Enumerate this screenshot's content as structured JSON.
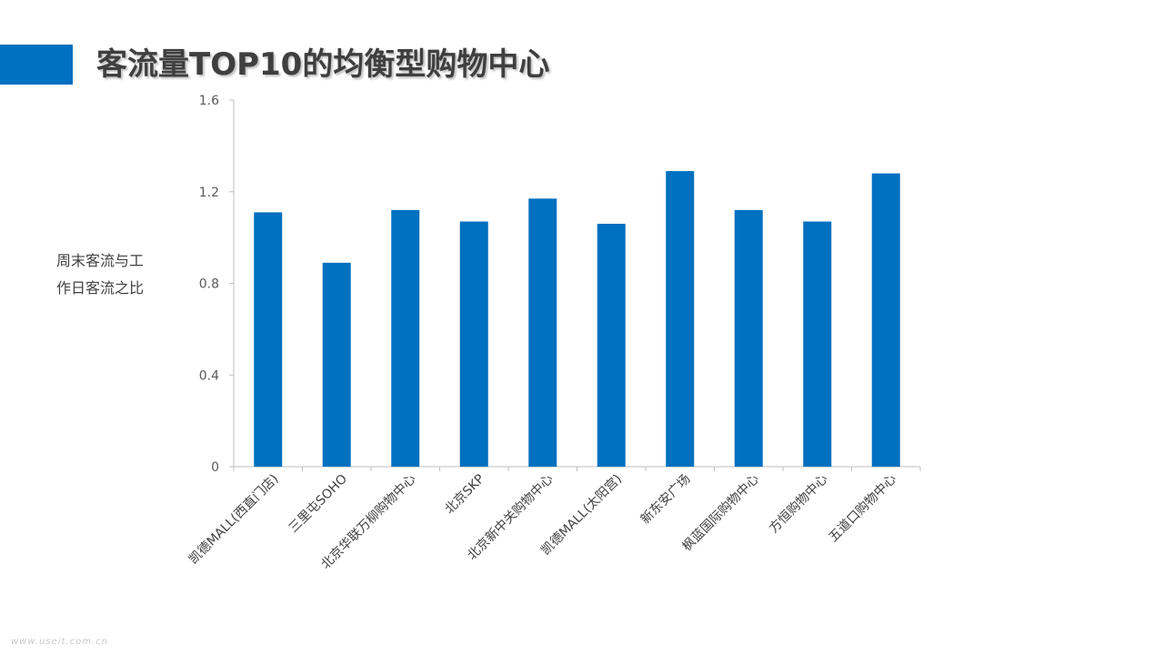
{
  "header": {
    "title": "客流量TOP10的均衡型购物中心",
    "accent_color": "#0070c0"
  },
  "watermark": "www.useit.com.cn",
  "chart_data": {
    "type": "bar",
    "title": "客流量TOP10的均衡型购物中心",
    "ylabel_lines": [
      "周末客流与工",
      "作日客流之比"
    ],
    "xlabel": "",
    "ylim": [
      0,
      1.6
    ],
    "yticks": [
      0,
      0.4,
      0.8,
      1.2,
      1.6
    ],
    "ytick_labels": [
      "0",
      "0.4",
      "0.8",
      "1.2",
      "1.6"
    ],
    "grid": false,
    "legend": "none",
    "bar_color": "#0070c0",
    "categories": [
      "凯德MALL(西直门店)",
      "三里屯SOHO",
      "北京华联万柳购物中心",
      "北京SKP",
      "北京新中关购物中心",
      "凯德MALL(太阳宫)",
      "新东安广场",
      "枫蓝国际购物中心",
      "方恒购物中心",
      "五道口购物中心"
    ],
    "values": [
      1.11,
      0.89,
      1.12,
      1.07,
      1.17,
      1.06,
      1.29,
      1.12,
      1.07,
      1.28
    ]
  }
}
